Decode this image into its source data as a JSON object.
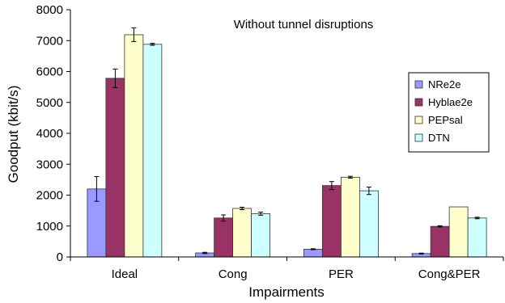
{
  "chart_data": {
    "type": "bar",
    "title": "",
    "annotation": "Without tunnel disruptions",
    "xlabel": "Impairments",
    "ylabel": "Goodput (kbit/s)",
    "ylim": [
      0,
      8000
    ],
    "yticks": [
      "0",
      "1000",
      "2000",
      "3000",
      "4000",
      "5000",
      "6000",
      "7000",
      "8000"
    ],
    "categories": [
      "Ideal",
      "Cong",
      "PER",
      "Cong&PER"
    ],
    "legend_position": "right",
    "grid": false,
    "series": [
      {
        "name": "NRe2e",
        "color": "#9999ff",
        "values": [
          2200,
          130,
          250,
          110
        ],
        "errors": [
          400,
          20,
          15,
          15
        ]
      },
      {
        "name": "Hyblae2e",
        "color": "#993366",
        "values": [
          5780,
          1260,
          2310,
          990
        ],
        "errors": [
          300,
          100,
          130,
          20
        ]
      },
      {
        "name": "PEPsal",
        "color": "#ffffcc",
        "values": [
          7190,
          1570,
          2580,
          1620
        ],
        "errors": [
          220,
          40,
          30,
          0
        ]
      },
      {
        "name": "DTN",
        "color": "#ccffff",
        "values": [
          6880,
          1400,
          2140,
          1260
        ],
        "errors": [
          30,
          50,
          120,
          25
        ]
      }
    ]
  }
}
